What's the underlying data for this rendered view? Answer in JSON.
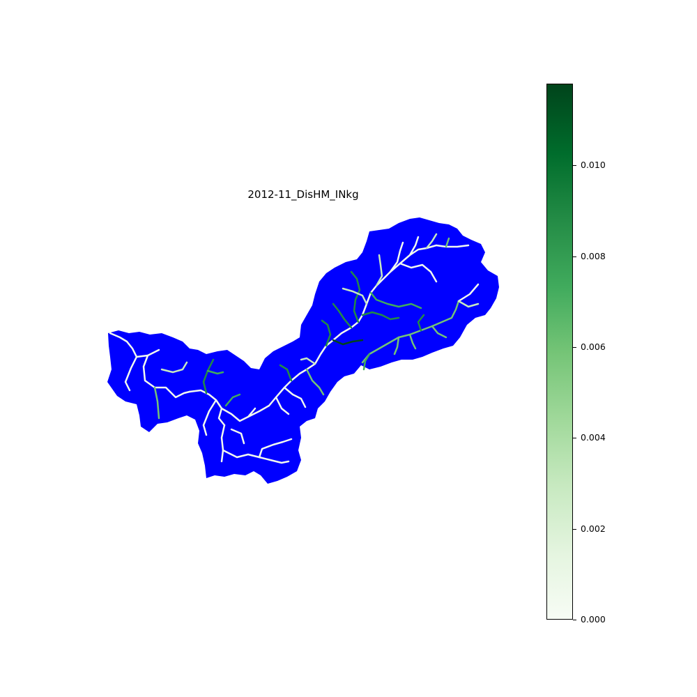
{
  "title": "2012-11_DisHM_INkg",
  "colors": {
    "watershed_fill": "#0000ff",
    "river_low": "#f7fcf5",
    "river_mid": "#74c476",
    "river_high": "#00441b"
  },
  "colorbar": {
    "colormap": "Greens",
    "min": 0.0,
    "max": 0.0118,
    "ticks": [
      "0.000",
      "0.002",
      "0.004",
      "0.006",
      "0.008",
      "0.010"
    ],
    "tick_values": [
      0.0,
      0.002,
      0.004,
      0.006,
      0.008,
      0.01
    ]
  }
}
